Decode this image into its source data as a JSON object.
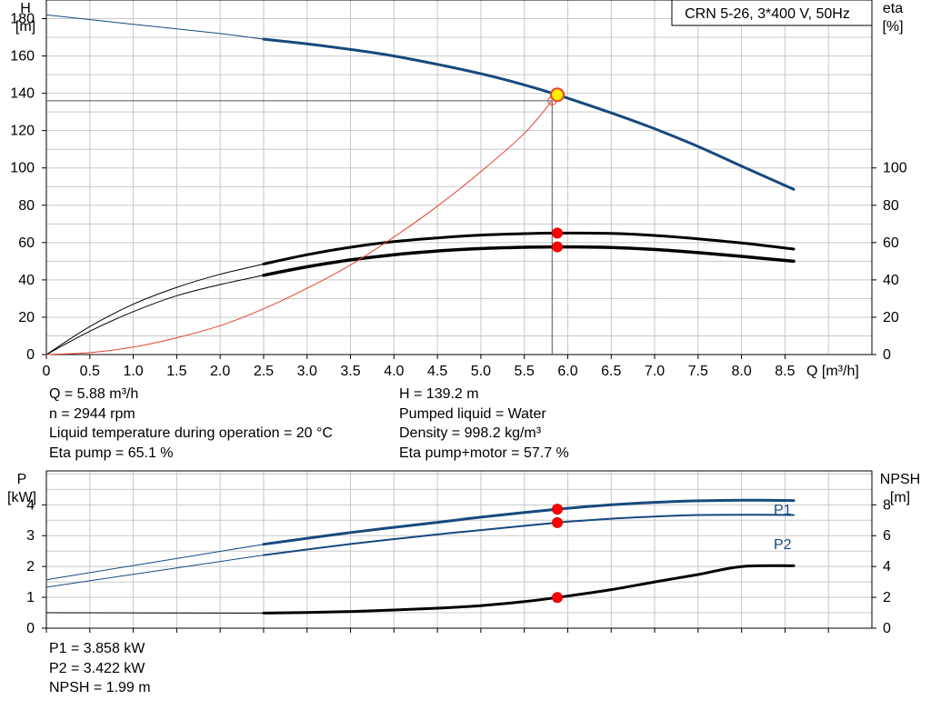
{
  "chart_data": [
    {
      "type": "line",
      "title": "CRN 5-26, 3*400 V, 50Hz",
      "x_label": "Q [m³/h]",
      "x_range": [
        0,
        9.5
      ],
      "x_ticks": [
        0,
        0.5,
        1.0,
        1.5,
        2.0,
        2.5,
        3.0,
        3.5,
        4.0,
        4.5,
        5.0,
        5.5,
        6.0,
        6.5,
        7.0,
        7.5,
        8.0,
        8.5
      ],
      "x_tick_labels": [
        "0",
        "0.5",
        "1.0",
        "1.5",
        "2.0",
        "2.5",
        "3.0",
        "3.5",
        "4.0",
        "4.5",
        "5.0",
        "5.5",
        "6.0",
        "6.5",
        "7.0",
        "7.5",
        "8.0",
        "8.5"
      ],
      "y_left": {
        "label_line1": "H",
        "label_line2": "[m]",
        "range": [
          0,
          190
        ],
        "ticks": [
          0,
          20,
          40,
          60,
          80,
          100,
          120,
          140,
          160,
          180
        ]
      },
      "y_right": {
        "label_line1": "eta",
        "label_line2": "[%]",
        "range": [
          0,
          190
        ],
        "ticks": [
          0,
          20,
          40,
          60,
          80,
          100
        ]
      },
      "grid": true,
      "series": [
        {
          "role": "head",
          "color": "#17497e",
          "x": [
            2.5,
            3.0,
            3.5,
            4.0,
            4.5,
            5.0,
            5.5,
            5.88,
            6.5,
            7.0,
            7.5,
            8.0,
            8.6
          ],
          "y": [
            169,
            166.5,
            163.5,
            160,
            155.5,
            150.5,
            144.5,
            139.2,
            129.5,
            121,
            111.5,
            101,
            88.5
          ]
        },
        {
          "role": "head_extension",
          "color": "#17497e",
          "x": [
            0,
            1.0,
            2.0,
            2.5
          ],
          "y": [
            182,
            177,
            172,
            169
          ]
        },
        {
          "role": "eta_pump",
          "color": "#000000",
          "x": [
            2.5,
            3.0,
            3.5,
            4.0,
            4.5,
            5.0,
            5.5,
            5.88,
            6.5,
            7.0,
            7.5,
            8.0,
            8.6
          ],
          "y": [
            48.5,
            53.5,
            57.5,
            60.5,
            62.5,
            64,
            64.8,
            65.1,
            64.9,
            63.8,
            62,
            59.8,
            56.5
          ]
        },
        {
          "role": "eta_pump_motor",
          "color": "#000000",
          "x": [
            2.5,
            3.0,
            3.5,
            4.0,
            4.5,
            5.0,
            5.5,
            5.88,
            6.5,
            7.0,
            7.5,
            8.0,
            8.6
          ],
          "y": [
            42.5,
            47,
            50.7,
            53.5,
            55.5,
            56.8,
            57.5,
            57.7,
            57.4,
            56.3,
            54.6,
            52.6,
            50
          ]
        },
        {
          "role": "eta_pump_extension",
          "color": "#000000",
          "x": [
            0,
            0.5,
            1.0,
            1.5,
            2.0,
            2.5
          ],
          "y": [
            0,
            15,
            27,
            36,
            43,
            48.5
          ]
        },
        {
          "role": "eta_pump_motor_extension",
          "color": "#000000",
          "x": [
            0,
            0.5,
            1.0,
            1.5,
            2.0,
            2.5
          ],
          "y": [
            0,
            12.5,
            23,
            31.5,
            37.5,
            42.5
          ]
        },
        {
          "role": "system_curve",
          "color": "#e8412c",
          "x": [
            0,
            0.5,
            1.0,
            1.5,
            2.0,
            2.5,
            3.0,
            3.5,
            4.0,
            4.5,
            5.0,
            5.5,
            5.82
          ],
          "y": [
            0,
            1,
            4,
            9,
            15.5,
            24.5,
            35.5,
            48,
            63,
            79.5,
            98,
            118.5,
            136
          ]
        }
      ],
      "operating_points": [
        {
          "x": 5.88,
          "y": 139.2,
          "color": "#ffee00"
        },
        {
          "x": 5.88,
          "y": 65.1,
          "color": "#ff0000"
        },
        {
          "x": 5.88,
          "y": 57.7,
          "color": "#ff0000"
        }
      ],
      "requested_point": {
        "x": 5.82,
        "y": 136
      }
    },
    {
      "type": "line",
      "x_range": [
        0,
        9.5
      ],
      "y_left": {
        "label_line1": "P",
        "label_line2": "[kW]",
        "range": [
          0,
          5.1
        ],
        "ticks": [
          0,
          1,
          2,
          3,
          4
        ]
      },
      "y_right": {
        "label_line1": "NPSH",
        "label_line2": "[m]",
        "range": [
          0,
          10.2
        ],
        "ticks": [
          0,
          2,
          4,
          6,
          8
        ]
      },
      "grid": true,
      "series": [
        {
          "name": "P1",
          "role": "P1",
          "axis": "left",
          "color": "#17497e",
          "x": [
            2.5,
            3.5,
            4.5,
            5.0,
            5.88,
            6.5,
            7.0,
            7.5,
            8.0,
            8.6
          ],
          "y": [
            2.72,
            3.1,
            3.43,
            3.6,
            3.858,
            4.0,
            4.08,
            4.13,
            4.15,
            4.14
          ]
        },
        {
          "name": "P2",
          "role": "P2",
          "axis": "left",
          "color": "#17497e",
          "x": [
            2.5,
            3.5,
            4.5,
            5.0,
            5.88,
            6.5,
            7.0,
            7.5,
            8.0,
            8.6
          ],
          "y": [
            2.37,
            2.73,
            3.04,
            3.18,
            3.422,
            3.55,
            3.62,
            3.67,
            3.68,
            3.67
          ]
        },
        {
          "role": "P1_extension",
          "axis": "left",
          "color": "#17497e",
          "x": [
            0,
            2.5
          ],
          "y": [
            1.57,
            2.72
          ]
        },
        {
          "role": "P2_extension",
          "axis": "left",
          "color": "#17497e",
          "x": [
            0,
            2.5
          ],
          "y": [
            1.33,
            2.37
          ]
        },
        {
          "role": "NPSH",
          "axis": "right",
          "color": "#000000",
          "x": [
            2.5,
            3.0,
            3.5,
            4.0,
            4.5,
            5.0,
            5.5,
            5.88,
            6.5,
            7.0,
            7.5,
            8.0,
            8.6
          ],
          "y": [
            0.98,
            1.02,
            1.08,
            1.18,
            1.3,
            1.46,
            1.72,
            1.99,
            2.5,
            3.0,
            3.48,
            4.0,
            4.05
          ]
        },
        {
          "role": "NPSH_extension",
          "axis": "right",
          "color": "#000000",
          "x": [
            0,
            2.5
          ],
          "y": [
            1.0,
            0.98
          ]
        }
      ],
      "operating_points": [
        {
          "x": 5.88,
          "y": 3.858,
          "axis": "left",
          "color": "#ff0000"
        },
        {
          "x": 5.88,
          "y": 3.422,
          "axis": "left",
          "color": "#ff0000"
        },
        {
          "x": 5.88,
          "y": 1.99,
          "axis": "right",
          "color": "#ff0000"
        }
      ]
    }
  ],
  "info": {
    "left": [
      "Q = 5.88 m³/h",
      "n = 2944 rpm",
      "Liquid temperature during operation = 20 °C",
      "Eta pump = 65.1 %"
    ],
    "right": [
      "H = 139.2 m",
      "Pumped liquid = Water",
      "Density = 998.2 kg/m³",
      "Eta pump+motor = 57.7 %"
    ],
    "bottom": [
      "P1 = 3.858 kW",
      "P2 = 3.422 kW",
      "NPSH = 1.99 m"
    ]
  }
}
